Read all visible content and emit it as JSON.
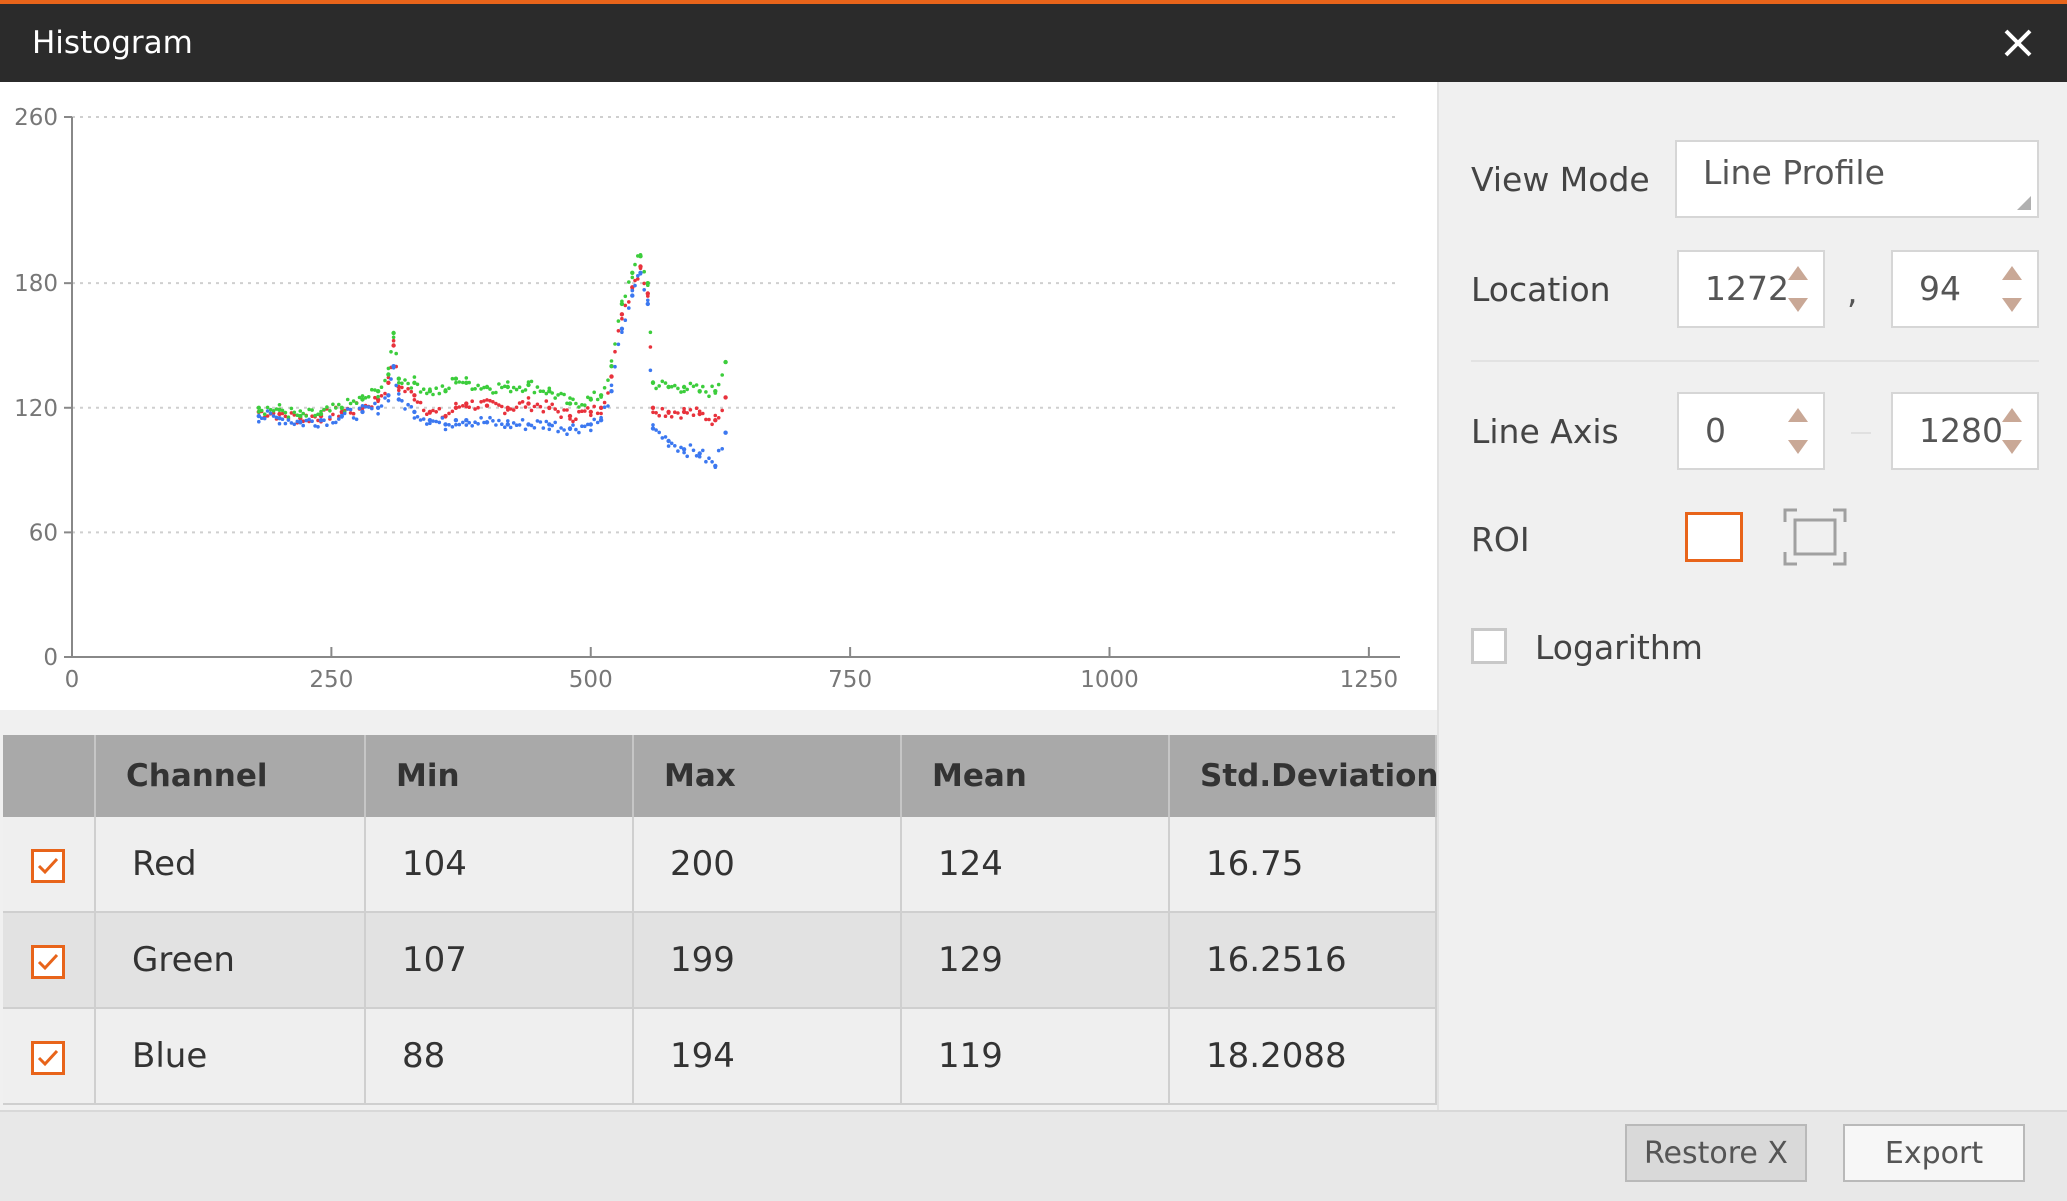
{
  "window": {
    "title": "Histogram"
  },
  "colors": {
    "accent": "#e8641a",
    "red": "#e8323c",
    "green": "#3ccd3c",
    "blue": "#3c78f0"
  },
  "chart_data": {
    "type": "scatter",
    "title": "",
    "xlabel": "",
    "ylabel": "",
    "xlim": [
      0,
      1280
    ],
    "ylim": [
      0,
      260
    ],
    "x_ticks": [
      "0",
      "250",
      "500",
      "750",
      "1000",
      "1250"
    ],
    "y_ticks": [
      "0",
      "60",
      "120",
      "180",
      "260"
    ],
    "grid": true,
    "legend": "none",
    "series": [
      {
        "color": "#e8323c",
        "points": [
          [
            180,
            118
          ],
          [
            200,
            117
          ],
          [
            220,
            115
          ],
          [
            240,
            116
          ],
          [
            260,
            118
          ],
          [
            280,
            120
          ],
          [
            295,
            124
          ],
          [
            305,
            132
          ],
          [
            310,
            150
          ],
          [
            315,
            130
          ],
          [
            330,
            126
          ],
          [
            345,
            118
          ],
          [
            360,
            116
          ],
          [
            370,
            120
          ],
          [
            380,
            122
          ],
          [
            400,
            121
          ],
          [
            420,
            120
          ],
          [
            440,
            122
          ],
          [
            460,
            120
          ],
          [
            480,
            116
          ],
          [
            500,
            118
          ],
          [
            510,
            120
          ],
          [
            520,
            135
          ],
          [
            530,
            165
          ],
          [
            540,
            178
          ],
          [
            548,
            188
          ],
          [
            555,
            175
          ],
          [
            560,
            120
          ],
          [
            575,
            118
          ],
          [
            590,
            118
          ],
          [
            605,
            117
          ],
          [
            620,
            114
          ],
          [
            630,
            125
          ]
        ]
      },
      {
        "color": "#3ccd3c",
        "points": [
          [
            180,
            120
          ],
          [
            200,
            119
          ],
          [
            220,
            116
          ],
          [
            240,
            117
          ],
          [
            260,
            120
          ],
          [
            280,
            124
          ],
          [
            295,
            128
          ],
          [
            305,
            136
          ],
          [
            310,
            156
          ],
          [
            315,
            134
          ],
          [
            330,
            132
          ],
          [
            345,
            128
          ],
          [
            360,
            128
          ],
          [
            370,
            134
          ],
          [
            380,
            132
          ],
          [
            400,
            130
          ],
          [
            420,
            130
          ],
          [
            440,
            131
          ],
          [
            460,
            128
          ],
          [
            480,
            122
          ],
          [
            500,
            124
          ],
          [
            510,
            126
          ],
          [
            520,
            140
          ],
          [
            530,
            170
          ],
          [
            540,
            185
          ],
          [
            548,
            193
          ],
          [
            555,
            180
          ],
          [
            560,
            132
          ],
          [
            575,
            130
          ],
          [
            590,
            130
          ],
          [
            605,
            128
          ],
          [
            620,
            128
          ],
          [
            630,
            142
          ]
        ]
      },
      {
        "color": "#3c78f0",
        "points": [
          [
            180,
            116
          ],
          [
            200,
            115
          ],
          [
            220,
            113
          ],
          [
            240,
            114
          ],
          [
            260,
            116
          ],
          [
            280,
            118
          ],
          [
            295,
            120
          ],
          [
            305,
            126
          ],
          [
            310,
            140
          ],
          [
            315,
            124
          ],
          [
            330,
            118
          ],
          [
            345,
            114
          ],
          [
            360,
            112
          ],
          [
            370,
            114
          ],
          [
            380,
            114
          ],
          [
            400,
            113
          ],
          [
            420,
            112
          ],
          [
            440,
            112
          ],
          [
            460,
            112
          ],
          [
            480,
            110
          ],
          [
            500,
            112
          ],
          [
            510,
            114
          ],
          [
            520,
            128
          ],
          [
            530,
            158
          ],
          [
            540,
            174
          ],
          [
            548,
            185
          ],
          [
            555,
            170
          ],
          [
            560,
            110
          ],
          [
            575,
            104
          ],
          [
            590,
            100
          ],
          [
            605,
            98
          ],
          [
            620,
            92
          ],
          [
            630,
            108
          ]
        ]
      }
    ]
  },
  "table": {
    "headers": [
      "",
      "Channel",
      "Min",
      "Max",
      "Mean",
      "Std.Deviation"
    ],
    "rows": [
      {
        "channel": "Red",
        "min": "104",
        "max": "200",
        "mean": "124",
        "std": "16.75"
      },
      {
        "channel": "Green",
        "min": "107",
        "max": "199",
        "mean": "129",
        "std": "16.2516"
      },
      {
        "channel": "Blue",
        "min": "88",
        "max": "194",
        "mean": "119",
        "std": "18.2088"
      }
    ]
  },
  "controls": {
    "view_mode_label": "View Mode",
    "view_mode_value": "Line Profile",
    "location_label": "Location",
    "location_x": "1272",
    "location_separator": ",",
    "location_y": "94",
    "line_axis_label": "Line Axis",
    "line_axis_start": "0",
    "line_axis_end": "1280",
    "roi_label": "ROI",
    "logarithm_label": "Logarithm"
  },
  "buttons": {
    "restore_label": "Restore X",
    "export_label": "Export"
  }
}
